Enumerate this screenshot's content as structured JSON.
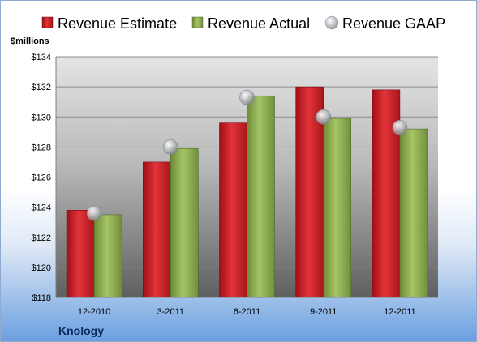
{
  "company": "Knology",
  "unit_label": "$millions",
  "colors": {
    "estimate": "#c8191e",
    "actual": "#8cab4f",
    "gaap": "#b8bcc4"
  },
  "chart_data": {
    "type": "bar",
    "title": "",
    "xlabel": "",
    "ylabel": "$millions",
    "categories": [
      "12-2010",
      "3-2011",
      "6-2011",
      "9-2011",
      "12-2011"
    ],
    "series": [
      {
        "name": "Revenue Estimate",
        "kind": "bar",
        "values": [
          123.8,
          127.0,
          129.6,
          132.0,
          131.8
        ]
      },
      {
        "name": "Revenue Actual",
        "kind": "bar",
        "values": [
          123.5,
          127.9,
          131.4,
          129.9,
          129.2
        ]
      },
      {
        "name": "Revenue GAAP",
        "kind": "marker",
        "values": [
          123.6,
          128.0,
          131.3,
          130.0,
          129.3
        ]
      }
    ],
    "ylim": [
      118,
      134
    ],
    "yticks": [
      "$118",
      "$120",
      "$122",
      "$124",
      "$126",
      "$128",
      "$130",
      "$132",
      "$134"
    ],
    "grid": true,
    "legend": "top"
  }
}
